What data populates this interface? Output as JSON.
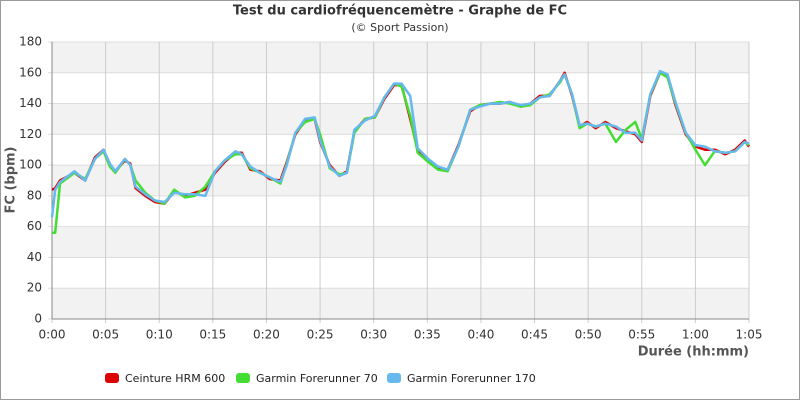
{
  "chart_data": {
    "type": "line",
    "title": "Test du cardiofréquencemètre - Graphe de FC",
    "subtitle": "(© Sport Passion)",
    "x_label": "Durée (hh:mm)",
    "y_label": "FC (bpm)",
    "x": [
      0,
      0.3,
      0.75,
      2.1,
      3.1,
      4,
      4.8,
      5.4,
      5.9,
      6.8,
      7.3,
      7.8,
      8.7,
      9.6,
      10.5,
      11.4,
      12.4,
      13.3,
      14.3,
      15.2,
      16.1,
      17.1,
      17.7,
      18.5,
      19.4,
      20.3,
      21.3,
      21.9,
      22.7,
      23.6,
      24.5,
      25,
      25.9,
      26.8,
      27.5,
      28.2,
      29.2,
      30.1,
      31,
      31.9,
      32.6,
      33.4,
      34.1,
      35.1,
      36,
      36.9,
      37.9,
      39,
      39.9,
      40.9,
      41.8,
      42.7,
      43.7,
      44.6,
      45.5,
      46.4,
      47.4,
      47.8,
      48.5,
      49.2,
      49.9,
      50.7,
      51.6,
      52.6,
      53.5,
      54.4,
      55,
      55.8,
      56.7,
      57.4,
      58.1,
      59.1,
      60,
      60.9,
      61.8,
      62.8,
      63.7,
      64.6,
      65
    ],
    "series": [
      {
        "name": "Ceinture HRM 600",
        "color": "#dd0000",
        "values": [
          84,
          85,
          90,
          95,
          90,
          105,
          110,
          100,
          96,
          103,
          101,
          85,
          80,
          76,
          75,
          83,
          80,
          82,
          84,
          95,
          102,
          108,
          108,
          97,
          96,
          91,
          90,
          102,
          120,
          129,
          130,
          115,
          100,
          93,
          96,
          122,
          130,
          131,
          143,
          152,
          152,
          130,
          110,
          103,
          98,
          97,
          113,
          135,
          139,
          140,
          140,
          141,
          138,
          140,
          145,
          145,
          155,
          160,
          145,
          125,
          128,
          124,
          128,
          124,
          122,
          120,
          115,
          145,
          160,
          158,
          140,
          120,
          112,
          110,
          110,
          107,
          110,
          116,
          112
        ]
      },
      {
        "name": "Garmin Forerunner 70",
        "color": "#44dd33",
        "values": [
          56,
          56,
          88,
          95,
          91,
          104,
          109,
          99,
          95,
          104,
          100,
          90,
          82,
          77,
          75,
          84,
          79,
          80,
          86,
          96,
          103,
          107,
          107,
          98,
          95,
          92,
          88,
          101,
          121,
          128,
          130,
          120,
          98,
          94,
          95,
          121,
          130,
          131,
          144,
          153,
          151,
          132,
          108,
          102,
          97,
          96,
          112,
          136,
          139,
          140,
          141,
          140,
          138,
          139,
          144,
          146,
          154,
          159,
          146,
          124,
          127,
          125,
          127,
          115,
          123,
          128,
          117,
          146,
          160,
          157,
          141,
          121,
          110,
          100,
          109,
          108,
          109,
          115,
          113
        ]
      },
      {
        "name": "Garmin Forerunner 170",
        "color": "#66b8ee",
        "values": [
          66,
          84,
          89,
          96,
          90,
          104,
          110,
          101,
          96,
          104,
          100,
          86,
          81,
          77,
          76,
          82,
          81,
          81,
          80,
          96,
          103,
          109,
          107,
          99,
          95,
          92,
          89,
          100,
          121,
          130,
          131,
          116,
          99,
          93,
          95,
          123,
          129,
          132,
          144,
          153,
          153,
          145,
          111,
          104,
          99,
          97,
          112,
          136,
          138,
          140,
          140,
          141,
          139,
          140,
          144,
          145,
          155,
          159,
          146,
          126,
          127,
          125,
          127,
          125,
          121,
          121,
          116,
          146,
          161,
          159,
          142,
          121,
          113,
          112,
          109,
          108,
          109,
          115,
          114
        ]
      }
    ],
    "xlim": [
      0,
      65
    ],
    "xticks": [
      {
        "value": 0,
        "label": "0:00"
      },
      {
        "value": 5,
        "label": "0:05"
      },
      {
        "value": 10,
        "label": "0:10"
      },
      {
        "value": 15,
        "label": "0:15"
      },
      {
        "value": 20,
        "label": "0:20"
      },
      {
        "value": 25,
        "label": "0:25"
      },
      {
        "value": 30,
        "label": "0:30"
      },
      {
        "value": 35,
        "label": "0:35"
      },
      {
        "value": 40,
        "label": "0:40"
      },
      {
        "value": 45,
        "label": "0:45"
      },
      {
        "value": 50,
        "label": "0:50"
      },
      {
        "value": 55,
        "label": "0:55"
      },
      {
        "value": 60,
        "label": "1:00"
      },
      {
        "value": 65,
        "label": "1:05"
      }
    ],
    "ylim": [
      0,
      180
    ],
    "yticks": [
      0,
      20,
      40,
      60,
      80,
      100,
      120,
      140,
      160,
      180
    ],
    "grid": true,
    "legend": "bottom"
  }
}
